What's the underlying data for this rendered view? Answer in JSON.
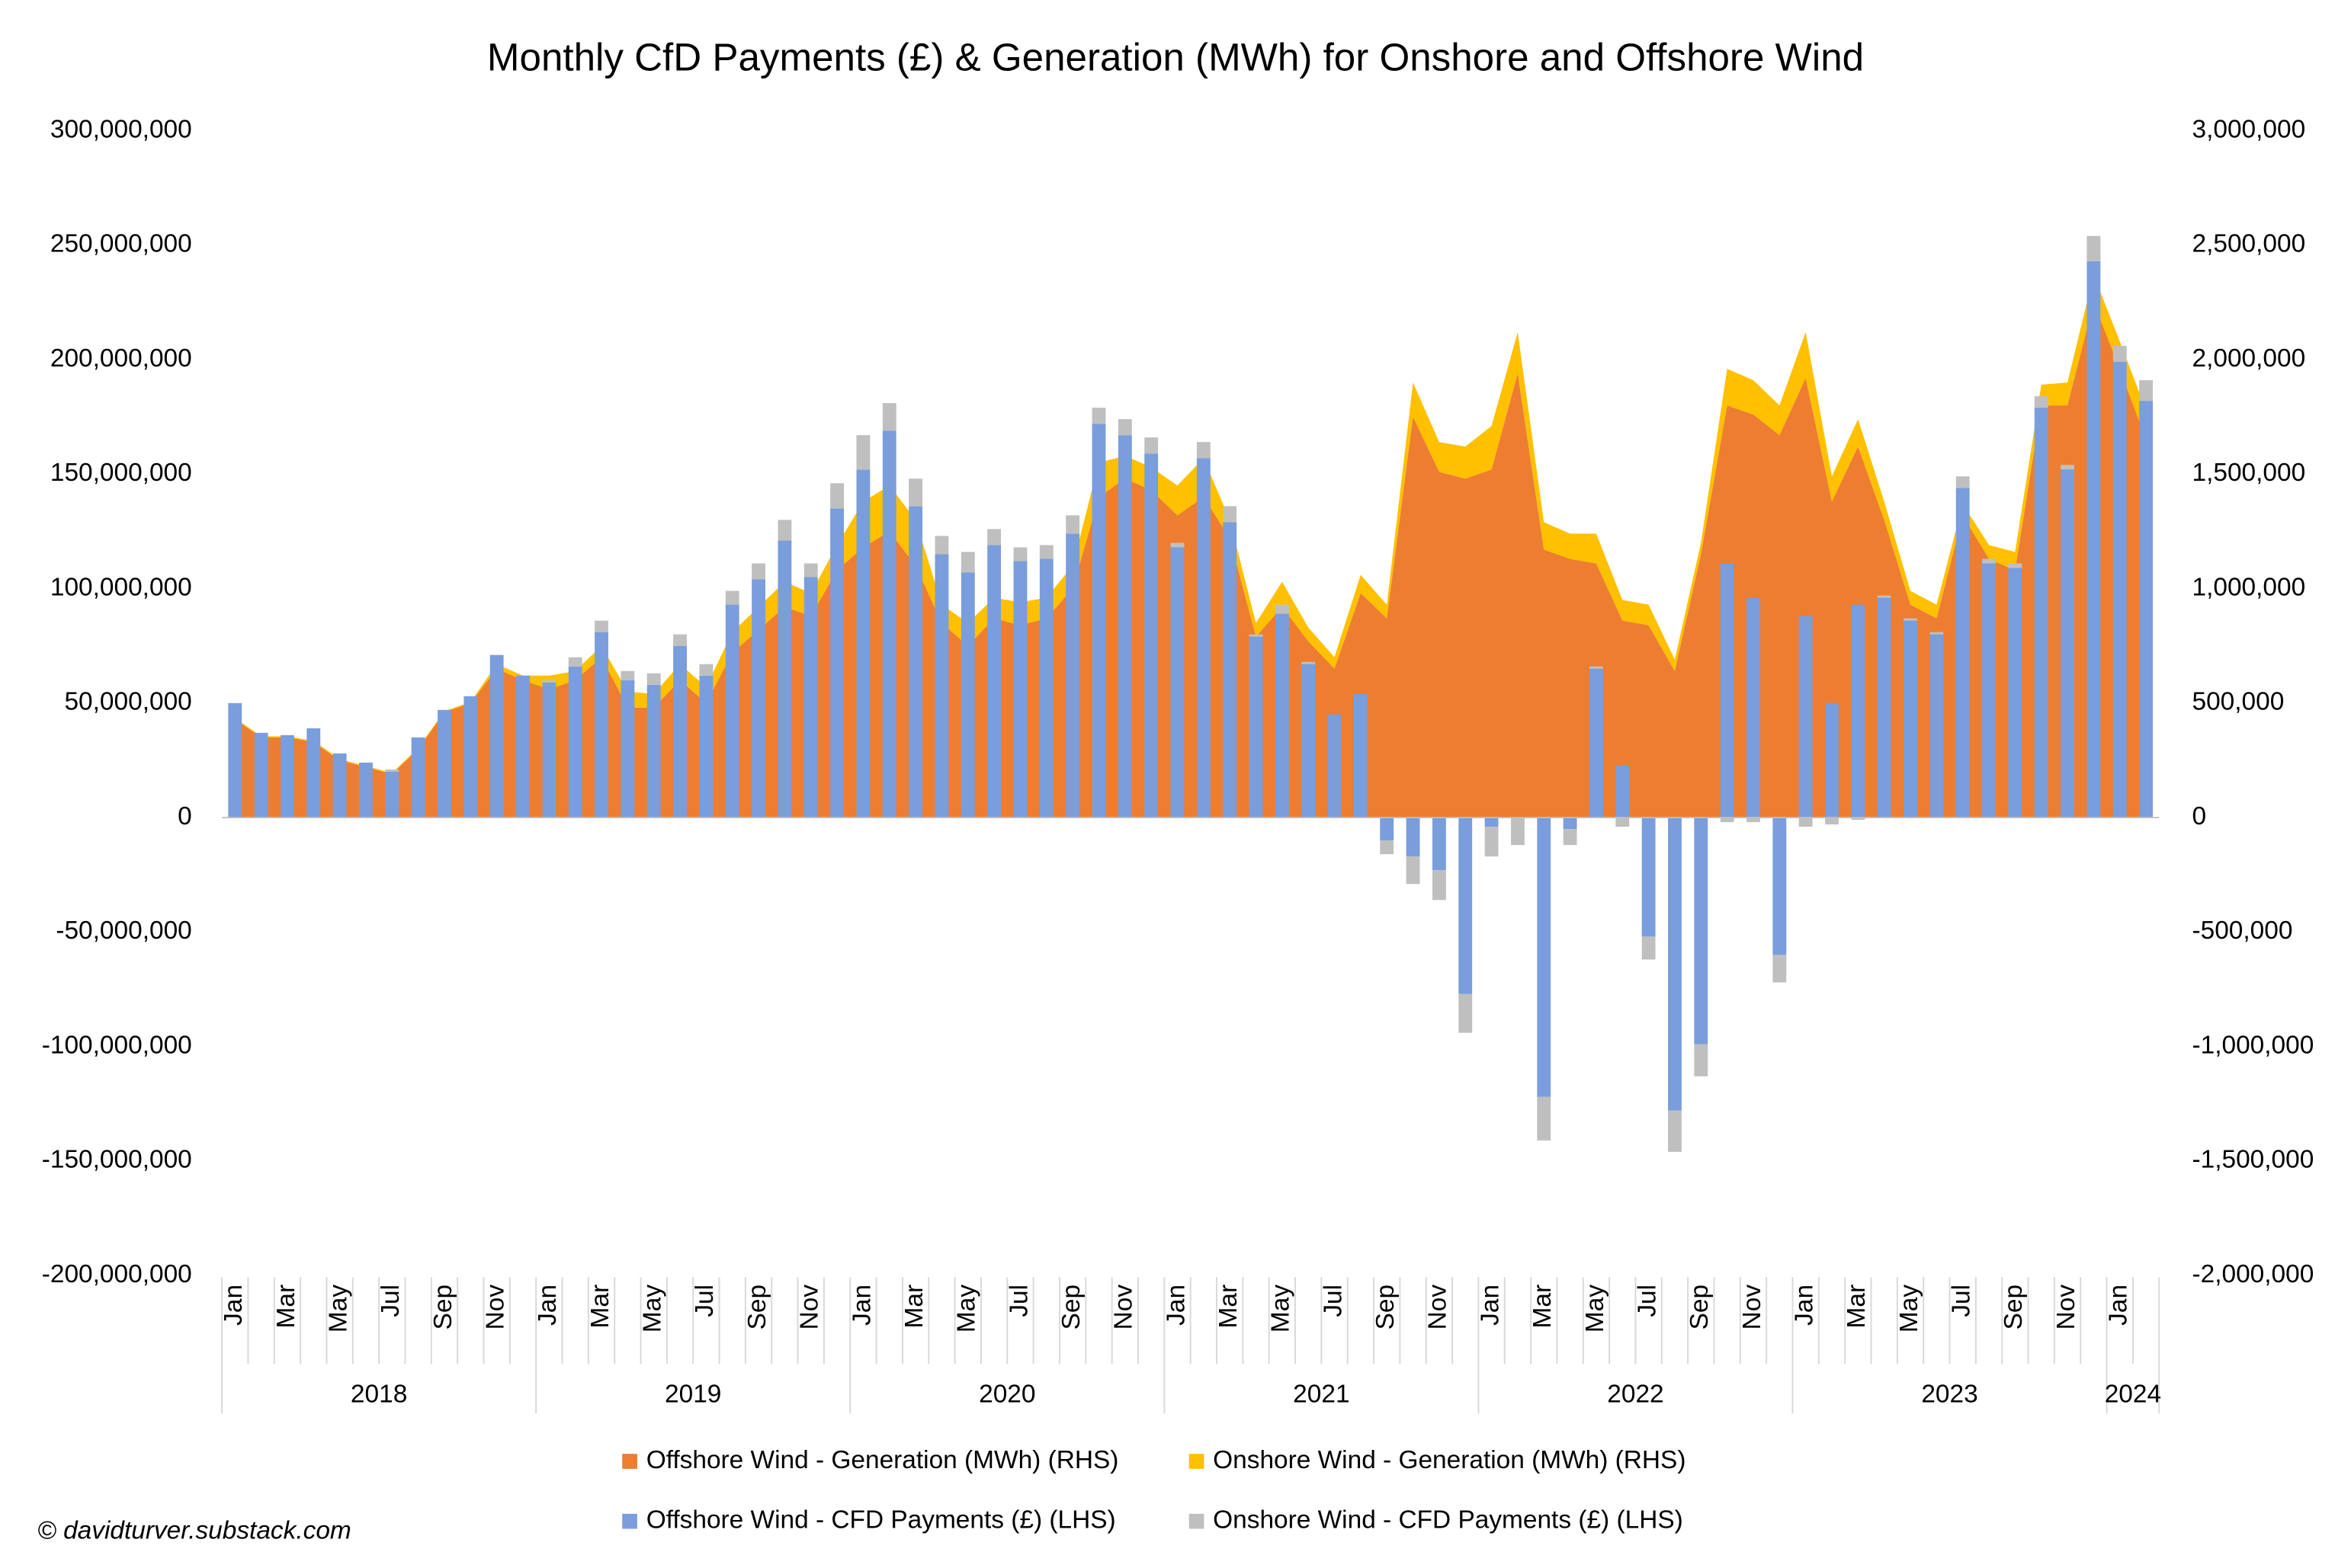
{
  "chart_data": {
    "type": "bar",
    "title": "Monthly CfD Payments (£) & Generation (MWh) for Onshore and Offshore Wind",
    "footer": "© davidturver.substack.com",
    "categories": [
      "Jan",
      null,
      "Mar",
      null,
      "May",
      null,
      "Jul",
      null,
      "Sep",
      null,
      "Nov",
      null,
      "Jan",
      null,
      "Mar",
      null,
      "May",
      null,
      "Jul",
      null,
      "Sep",
      null,
      "Nov",
      null,
      "Jan",
      null,
      "Mar",
      null,
      "May",
      null,
      "Jul",
      null,
      "Sep",
      null,
      "Nov",
      null,
      "Jan",
      null,
      "Mar",
      null,
      "May",
      null,
      "Jul",
      null,
      "Sep",
      null,
      "Nov",
      null,
      "Jan",
      null,
      "Mar",
      null,
      "May",
      null,
      "Jul",
      null,
      "Sep",
      null,
      "Nov",
      null,
      "Jan",
      null,
      "Mar",
      null,
      "May",
      null,
      "Jul",
      null,
      "Sep",
      null,
      "Nov",
      null,
      "Jan",
      null
    ],
    "years": [
      "2018",
      "2019",
      "2020",
      "2021",
      "2022",
      "2023",
      "2024"
    ],
    "ylim": [
      -200000000,
      300000000
    ],
    "yticks": [
      {
        "value": -200000000,
        "label": "-200,000,000"
      },
      {
        "value": -150000000,
        "label": "-150,000,000"
      },
      {
        "value": -100000000,
        "label": "-100,000,000"
      },
      {
        "value": -50000000,
        "label": "-50,000,000"
      },
      0,
      {
        "value": 50000000,
        "label": "50,000,000"
      },
      {
        "value": 100000000,
        "label": "100,000,000"
      },
      {
        "value": 150000000,
        "label": "150,000,000"
      },
      {
        "value": 200000000,
        "label": "200,000,000"
      },
      {
        "value": 250000000,
        "label": "250,000,000"
      },
      {
        "value": 300000000,
        "label": "300,000,000"
      }
    ],
    "y2lim": [
      -2000000,
      3000000
    ],
    "y2ticks": [
      {
        "value": -2000000,
        "label": "-2,000,000"
      },
      {
        "value": -1500000,
        "label": "-1,500,000"
      },
      {
        "value": -1000000,
        "label": "-1,000,000"
      },
      {
        "value": -500000,
        "label": "-500,000"
      },
      0,
      {
        "value": 500000,
        "label": "500,000"
      },
      {
        "value": 1000000,
        "label": "1,000,000"
      },
      {
        "value": 1500000,
        "label": "1,500,000"
      },
      {
        "value": 2000000,
        "label": "2,000,000"
      },
      {
        "value": 2500000,
        "label": "2,500,000"
      },
      {
        "value": 3000000,
        "label": "3,000,000"
      }
    ],
    "grid": false,
    "legend": "bottom",
    "series": [
      {
        "name": "Offshore Wind - Generation (MWh) (RHS)",
        "type": "area",
        "axis": "y2",
        "color": "#ED7D31",
        "values": [
          430000,
          350000,
          350000,
          330000,
          250000,
          220000,
          190000,
          300000,
          460000,
          500000,
          650000,
          600000,
          560000,
          600000,
          700000,
          480000,
          480000,
          600000,
          500000,
          720000,
          820000,
          920000,
          880000,
          1080000,
          1180000,
          1250000,
          1100000,
          850000,
          750000,
          870000,
          840000,
          870000,
          1000000,
          1400000,
          1480000,
          1430000,
          1320000,
          1400000,
          1220000,
          790000,
          920000,
          770000,
          650000,
          980000,
          870000,
          1750000,
          1510000,
          1480000,
          1520000,
          1940000,
          1170000,
          1130000,
          1110000,
          860000,
          840000,
          640000,
          1150000,
          1800000,
          1760000,
          1670000,
          1920000,
          1380000,
          1620000,
          1300000,
          930000,
          870000,
          1320000,
          1130000,
          1080000,
          1800000,
          1800000,
          2250000,
          1960000,
          1650000
        ]
      },
      {
        "name": "Onshore Wind - Generation (MWh) (RHS)",
        "type": "area",
        "axis": "y2",
        "color": "#FFC000",
        "values": [
          5000,
          5000,
          5000,
          5000,
          5000,
          5000,
          5000,
          5000,
          5000,
          5000,
          20000,
          20000,
          60000,
          40000,
          50000,
          70000,
          60000,
          70000,
          70000,
          90000,
          100000,
          110000,
          100000,
          110000,
          200000,
          200000,
          200000,
          80000,
          100000,
          90000,
          100000,
          90000,
          100000,
          150000,
          100000,
          100000,
          130000,
          170000,
          80000,
          60000,
          110000,
          60000,
          50000,
          80000,
          60000,
          150000,
          130000,
          140000,
          190000,
          180000,
          120000,
          110000,
          130000,
          90000,
          90000,
          50000,
          50000,
          160000,
          150000,
          130000,
          200000,
          110000,
          120000,
          80000,
          60000,
          60000,
          50000,
          60000,
          80000,
          90000,
          100000,
          120000,
          120000,
          130000
        ]
      },
      {
        "name": "Offshore Wind - CFD Payments (£) (LHS)",
        "type": "bar",
        "axis": "y",
        "color": "#7A9DDB",
        "values": [
          50000000,
          37000000,
          36000000,
          39000000,
          28000000,
          24000000,
          20000000,
          35000000,
          47000000,
          53000000,
          71000000,
          62000000,
          59000000,
          66000000,
          81000000,
          60000000,
          58000000,
          75000000,
          62000000,
          93000000,
          104000000,
          121000000,
          105000000,
          135000000,
          152000000,
          169000000,
          136000000,
          115000000,
          107000000,
          119000000,
          112000000,
          113000000,
          124000000,
          172000000,
          167000000,
          159000000,
          118000000,
          157000000,
          129000000,
          79000000,
          89000000,
          67000000,
          45000000,
          54000000,
          -10000000,
          -17000000,
          -23000000,
          -77000000,
          -4000000,
          0,
          -122000000,
          -5000000,
          65000000,
          23000000,
          -52000000,
          -128000000,
          -99000000,
          111000000,
          96000000,
          -60000000,
          88000000,
          50000000,
          93000000,
          96000000,
          86000000,
          80000000,
          144000000,
          111000000,
          109000000,
          179000000,
          152000000,
          243000000,
          199000000,
          182000000
        ]
      },
      {
        "name": "Onshore Wind - CFD Payments (£) (LHS)",
        "type": "bar",
        "axis": "y",
        "color": "#BFBFBF",
        "values": [
          0,
          0,
          0,
          0,
          0,
          0,
          1000000,
          0,
          0,
          0,
          0,
          0,
          1000000,
          4000000,
          5000000,
          4000000,
          5000000,
          5000000,
          5000000,
          6000000,
          7000000,
          9000000,
          6000000,
          11000000,
          15000000,
          12000000,
          12000000,
          8000000,
          9000000,
          7000000,
          6000000,
          6000000,
          8000000,
          7000000,
          7000000,
          7000000,
          2000000,
          7000000,
          7000000,
          1000000,
          4000000,
          1000000,
          0,
          0,
          -6000000,
          -12000000,
          -13000000,
          -17000000,
          -13000000,
          -12000000,
          -19000000,
          -7000000,
          1000000,
          -4000000,
          -10000000,
          -18000000,
          -14000000,
          -2000000,
          -2000000,
          -12000000,
          -4000000,
          -3000000,
          -1000000,
          1000000,
          1000000,
          1000000,
          5000000,
          2000000,
          2000000,
          5000000,
          2000000,
          11000000,
          7000000,
          9000000
        ]
      }
    ]
  }
}
